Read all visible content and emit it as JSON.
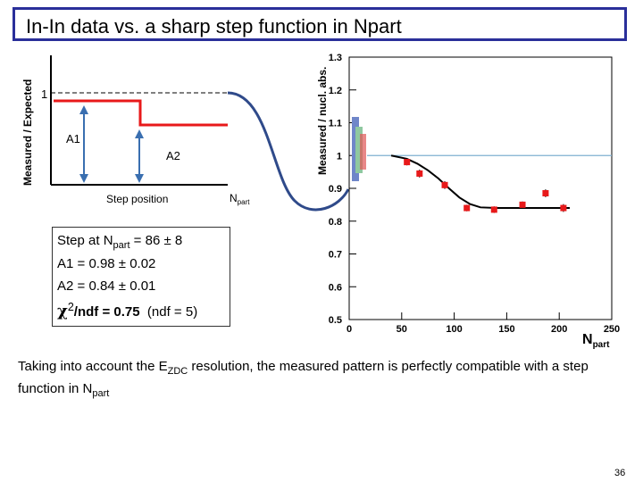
{
  "slide": {
    "title": "In-In data vs. a sharp step function in Npart",
    "page_number": "36",
    "note": {
      "part1": "Taking into account the E",
      "sub1": "ZDC",
      "part2": " resolution, the measured pattern is perfectly compatible with a step function in N",
      "sub2": "part"
    }
  },
  "step_sketch": {
    "ylabel": "Measured / Expected",
    "one_label": "1",
    "a1_label": "A1",
    "a2_label": "A2",
    "step_label": "Step position",
    "npart_main": "N",
    "npart_sub": "part"
  },
  "fit_result": {
    "line1_a": "Step at N",
    "line1_sub": "part",
    "line1_b": " = 86 ± 8",
    "line2": "A1 = 0.98 ± 0.02",
    "line3": "A2 = 0.84 ± 0.01",
    "chi_symbol": "χ",
    "chi_sup": "2",
    "chi_text": "/ndf = 0.75",
    "chi_extra": "(ndf = 5)"
  },
  "chart_data": {
    "type": "scatter",
    "ylabel": "Measured / nucl. abs.",
    "xlabel_main": "N",
    "xlabel_sub": "part",
    "xlim": [
      0,
      250
    ],
    "ylim": [
      0.5,
      1.3
    ],
    "xticks": [
      0,
      50,
      100,
      150,
      200,
      250
    ],
    "yticks": [
      0.5,
      0.6,
      0.7,
      0.8,
      0.9,
      1,
      1.1,
      1.2,
      1.3
    ],
    "ytick_labels": [
      "0.5",
      "0.6",
      "0.7",
      "0.8",
      "0.9",
      "1",
      "1.1",
      "1.2",
      "1.3"
    ],
    "reference_line": 1.0,
    "colors": {
      "points": "#e8191a",
      "fit": "#000000",
      "reference": "#7fb0d0",
      "box_blue": "#6f86c9",
      "box_green": "#8fc8a0",
      "box_red": "#e05555"
    },
    "series": [
      {
        "x": [
          55,
          67,
          91,
          112,
          138,
          165,
          187,
          204
        ],
        "y": [
          0.98,
          0.945,
          0.91,
          0.84,
          0.835,
          0.85,
          0.885,
          0.84
        ],
        "yerr": [
          0.01,
          0.012,
          0.012,
          0.01,
          0.01,
          0.01,
          0.012,
          0.012
        ]
      }
    ],
    "fit_curve": {
      "x": [
        40,
        55,
        65,
        75,
        85,
        95,
        105,
        115,
        125,
        140,
        160,
        185,
        210
      ],
      "y": [
        1.0,
        0.99,
        0.975,
        0.955,
        0.93,
        0.9,
        0.872,
        0.852,
        0.842,
        0.84,
        0.84,
        0.84,
        0.84
      ]
    }
  }
}
